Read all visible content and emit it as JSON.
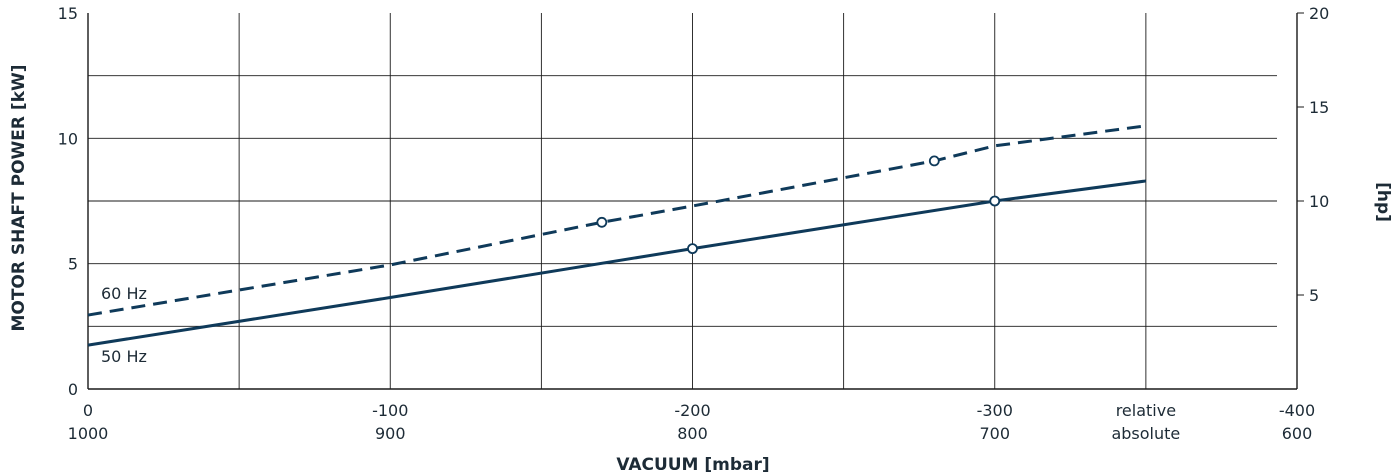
{
  "chart_data": {
    "type": "line",
    "xlabel": "VACUUM  [mbar]",
    "ylabel": "MOTOR SHAFT POWER  [kW]",
    "y2label": "[hp]",
    "xlim": [
      0,
      -400
    ],
    "ylim": [
      0,
      15
    ],
    "y2lim": [
      0,
      20
    ],
    "grid": true,
    "x_ticks": [
      {
        "relative": "0",
        "absolute": "1000"
      },
      {
        "relative": "-100",
        "absolute": "900"
      },
      {
        "relative": "-200",
        "absolute": "800"
      },
      {
        "relative": "-300",
        "absolute": "700"
      },
      {
        "relative": "-400",
        "absolute": "600"
      }
    ],
    "x_tick_row_labels": {
      "relative": "relative",
      "absolute": "absolute"
    },
    "y_ticks": [
      "0",
      "5",
      "10",
      "15"
    ],
    "y2_ticks": [
      "5",
      "10",
      "15",
      "20"
    ],
    "series": [
      {
        "name": "60 Hz",
        "style": "dashed",
        "x": [
          0,
          -100,
          -170,
          -200,
          -280,
          -300,
          -350
        ],
        "y": [
          2.95,
          4.95,
          6.65,
          7.3,
          9.1,
          9.7,
          10.5
        ],
        "markers_at": [
          -170,
          -280
        ]
      },
      {
        "name": "50 Hz",
        "style": "solid",
        "x": [
          0,
          -100,
          -200,
          -300,
          -350
        ],
        "y": [
          1.75,
          3.65,
          5.6,
          7.5,
          8.3
        ],
        "markers_at": [
          -200,
          -300
        ]
      }
    ],
    "colors": {
      "line": "#0f3a5a",
      "grid": "#1a1a1a",
      "text": "#1d2b36"
    }
  }
}
